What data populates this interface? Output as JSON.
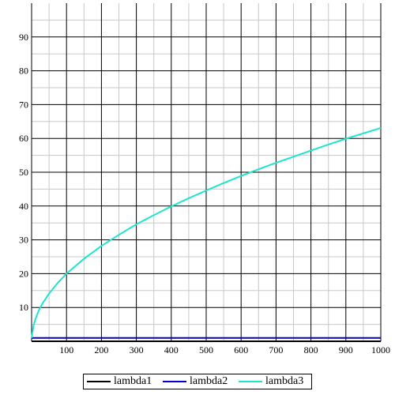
{
  "chart_data": {
    "type": "line",
    "title": "",
    "xlabel": "",
    "ylabel": "",
    "xlim": [
      0,
      1000
    ],
    "ylim": [
      0,
      100
    ],
    "x_ticks": [
      100,
      200,
      300,
      400,
      500,
      600,
      700,
      800,
      900,
      1000
    ],
    "y_ticks": [
      10,
      20,
      30,
      40,
      50,
      60,
      70,
      80,
      90
    ],
    "grid": true,
    "legend_position": "bottom",
    "series": [
      {
        "name": "lambda1",
        "color": "#000000",
        "x": [
          0,
          100,
          200,
          300,
          400,
          500,
          600,
          700,
          800,
          900,
          1000
        ],
        "y": [
          0,
          0,
          0,
          0,
          0,
          0,
          0,
          0,
          0,
          0,
          0
        ]
      },
      {
        "name": "lambda2",
        "color": "#0000cc",
        "x": [
          0,
          100,
          200,
          300,
          400,
          500,
          600,
          700,
          800,
          900,
          1000
        ],
        "y": [
          1,
          1,
          1,
          1,
          1,
          1,
          1,
          1,
          1,
          1,
          1
        ]
      },
      {
        "name": "lambda3",
        "color": "#1ee6cc",
        "x": [
          0,
          5,
          10,
          20,
          30,
          50,
          75,
          100,
          150,
          200,
          250,
          300,
          350,
          400,
          450,
          500,
          550,
          600,
          650,
          700,
          750,
          800,
          850,
          900,
          950,
          1000
        ],
        "y": [
          1,
          4.4,
          6.3,
          9.0,
          11.0,
          14.1,
          17.3,
          20.0,
          24.4,
          28.2,
          31.5,
          34.6,
          37.3,
          39.9,
          42.3,
          44.6,
          46.8,
          48.9,
          50.9,
          52.8,
          54.6,
          56.4,
          58.2,
          59.9,
          61.5,
          63.1
        ]
      }
    ]
  }
}
